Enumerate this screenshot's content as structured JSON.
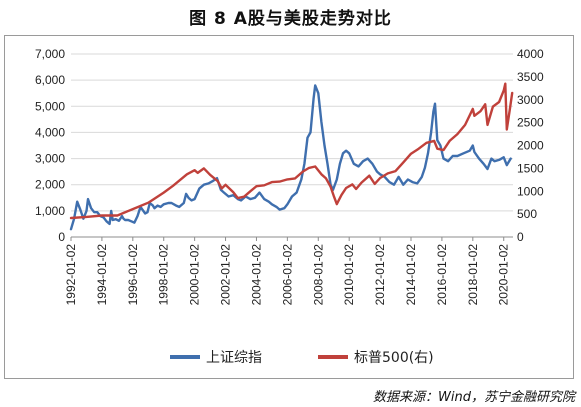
{
  "title": "图 8 A股与美股走势对比",
  "source_note": "数据来源：Wind，苏宁金融研究院",
  "chart_data": {
    "type": "line",
    "title": "图 8 A股与美股走势对比",
    "x_tick_labels": [
      "1992-01-02",
      "1994-01-02",
      "1996-01-02",
      "1998-01-02",
      "2000-01-02",
      "2002-01-02",
      "2004-01-02",
      "2006-01-02",
      "2008-01-02",
      "2010-01-02",
      "2012-01-02",
      "2014-01-02",
      "2016-01-02",
      "2018-01-02",
      "2020-01-02"
    ],
    "xlim": [
      1992.0,
      2020.6
    ],
    "y_left": {
      "ylim": [
        0,
        7000
      ],
      "ticks": [
        0,
        1000,
        2000,
        3000,
        4000,
        5000,
        6000,
        7000
      ],
      "tick_labels": [
        "0",
        "1,000",
        "2,000",
        "3,000",
        "4,000",
        "5,000",
        "6,000",
        "7,000"
      ]
    },
    "y_right": {
      "ylim": [
        0,
        4000
      ],
      "ticks": [
        0,
        500,
        1000,
        1500,
        2000,
        2500,
        3000,
        3500,
        4000
      ],
      "tick_labels": [
        "0",
        "500",
        "1000",
        "1500",
        "2000",
        "2500",
        "3000",
        "3500",
        "4000"
      ]
    },
    "grid": true,
    "legend_position": "bottom",
    "series": [
      {
        "name": "上证综指",
        "axis": "left",
        "color": "#3f6fae",
        "x": [
          1992.0,
          1992.2,
          1992.4,
          1992.6,
          1992.8,
          1993.0,
          1993.1,
          1993.3,
          1993.5,
          1993.7,
          1993.9,
          1994.1,
          1994.3,
          1994.5,
          1994.6,
          1994.7,
          1994.9,
          1995.1,
          1995.3,
          1995.4,
          1995.5,
          1995.7,
          1995.9,
          1996.1,
          1996.3,
          1996.5,
          1996.8,
          1996.95,
          1997.1,
          1997.3,
          1997.4,
          1997.6,
          1997.8,
          1998.0,
          1998.3,
          1998.5,
          1998.8,
          1999.0,
          1999.3,
          1999.45,
          1999.6,
          1999.8,
          2000.0,
          2000.3,
          2000.6,
          2000.9,
          2001.2,
          2001.45,
          2001.7,
          2001.9,
          2002.2,
          2002.5,
          2002.8,
          2003.0,
          2003.3,
          2003.6,
          2003.9,
          2004.2,
          2004.5,
          2004.8,
          2005.0,
          2005.3,
          2005.5,
          2005.8,
          2006.0,
          2006.3,
          2006.6,
          2006.9,
          2007.1,
          2007.3,
          2007.5,
          2007.7,
          2007.8,
          2008.0,
          2008.2,
          2008.4,
          2008.6,
          2008.8,
          2008.95,
          2009.2,
          2009.4,
          2009.6,
          2009.8,
          2010.0,
          2010.3,
          2010.6,
          2010.9,
          2011.2,
          2011.5,
          2011.8,
          2012.0,
          2012.3,
          2012.6,
          2012.9,
          2013.2,
          2013.5,
          2013.8,
          2014.1,
          2014.4,
          2014.7,
          2014.9,
          2015.1,
          2015.3,
          2015.45,
          2015.55,
          2015.7,
          2015.9,
          2016.1,
          2016.4,
          2016.7,
          2017.0,
          2017.4,
          2017.8,
          2018.0,
          2018.1,
          2018.4,
          2018.7,
          2018.95,
          2019.2,
          2019.4,
          2019.7,
          2020.0,
          2020.2,
          2020.45
        ],
        "values": [
          300,
          700,
          1350,
          1050,
          700,
          1000,
          1450,
          1100,
          950,
          950,
          800,
          750,
          600,
          500,
          1000,
          650,
          680,
          620,
          800,
          700,
          650,
          650,
          600,
          550,
          800,
          1150,
          900,
          950,
          1300,
          1200,
          1100,
          1200,
          1150,
          1250,
          1300,
          1300,
          1200,
          1150,
          1300,
          1650,
          1500,
          1400,
          1450,
          1850,
          2000,
          2050,
          2150,
          2250,
          1800,
          1700,
          1550,
          1600,
          1450,
          1400,
          1550,
          1450,
          1500,
          1700,
          1450,
          1350,
          1250,
          1150,
          1050,
          1100,
          1250,
          1550,
          1700,
          2200,
          2800,
          3800,
          4000,
          5300,
          5800,
          5500,
          4400,
          3500,
          2800,
          2000,
          1800,
          2200,
          2800,
          3200,
          3300,
          3200,
          2800,
          2700,
          2900,
          3000,
          2800,
          2500,
          2400,
          2300,
          2100,
          2000,
          2300,
          2000,
          2200,
          2100,
          2050,
          2300,
          2650,
          3200,
          4000,
          4800,
          5100,
          3700,
          3500,
          3000,
          2900,
          3100,
          3100,
          3200,
          3300,
          3500,
          3250,
          3000,
          2800,
          2600,
          3000,
          2900,
          2950,
          3050,
          2750,
          3000
        ]
      },
      {
        "name": "标普500(右)",
        "axis": "right",
        "color": "#c0413b",
        "x": [
          1992.0,
          1993.0,
          1994.0,
          1995.0,
          1996.0,
          1997.0,
          1998.0,
          1998.6,
          1999.0,
          1999.5,
          2000.0,
          2000.2,
          2000.6,
          2001.0,
          2001.5,
          2001.75,
          2002.0,
          2002.5,
          2002.8,
          2003.2,
          2003.6,
          2004.0,
          2004.5,
          2005.0,
          2005.5,
          2006.0,
          2006.5,
          2007.0,
          2007.4,
          2007.8,
          2008.2,
          2008.5,
          2008.8,
          2009.0,
          2009.2,
          2009.5,
          2009.8,
          2010.2,
          2010.45,
          2010.8,
          2011.3,
          2011.65,
          2012.0,
          2012.5,
          2013.0,
          2013.5,
          2014.0,
          2014.5,
          2015.0,
          2015.5,
          2015.7,
          2016.1,
          2016.5,
          2017.0,
          2017.5,
          2018.0,
          2018.1,
          2018.5,
          2018.8,
          2018.95,
          2019.3,
          2019.7,
          2020.0,
          2020.1,
          2020.2,
          2020.4,
          2020.55
        ],
        "values": [
          415,
          440,
          470,
          470,
          610,
          750,
          970,
          1120,
          1230,
          1370,
          1460,
          1400,
          1500,
          1360,
          1220,
          1060,
          1140,
          980,
          850,
          880,
          1000,
          1110,
          1130,
          1200,
          1210,
          1260,
          1280,
          1430,
          1510,
          1540,
          1370,
          1280,
          1100,
          900,
          720,
          920,
          1070,
          1150,
          1050,
          1190,
          1340,
          1160,
          1290,
          1390,
          1440,
          1630,
          1820,
          1930,
          2060,
          2100,
          1930,
          1900,
          2100,
          2250,
          2450,
          2800,
          2650,
          2750,
          2900,
          2450,
          2850,
          2950,
          3200,
          3350,
          2350,
          2800,
          3150
        ]
      }
    ]
  }
}
